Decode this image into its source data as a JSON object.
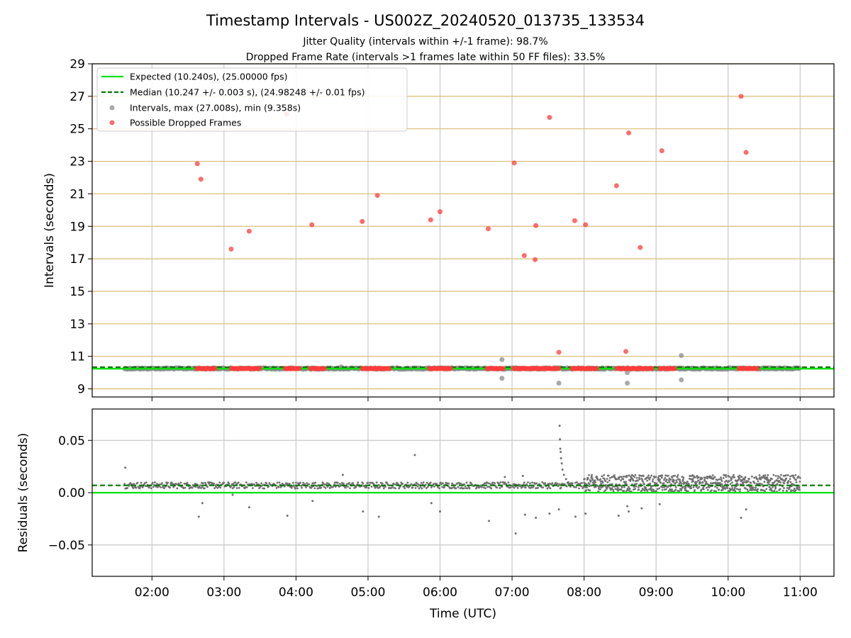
{
  "figure": {
    "title": "Timestamp Intervals - US002Z_20240520_013735_133534",
    "subtitle_1": "Jitter Quality (intervals within +/-1 frame): 98.7%",
    "subtitle_2": "Dropped Frame Rate (intervals >1 frames late within 50 FF files): 33.5%"
  },
  "chart_data": [
    {
      "type": "scatter",
      "panel": "top",
      "ylabel": "Intervals (seconds)",
      "xlim": [
        1.17,
        11.47
      ],
      "ylim": [
        8.5,
        29
      ],
      "yticks": [
        9,
        11,
        13,
        15,
        17,
        19,
        21,
        23,
        25,
        27,
        29
      ],
      "grid": "on",
      "legend_position": "top-left",
      "colors": {
        "expected": "#00e000",
        "median": "#007a00",
        "intervals": "#8c8c8c",
        "dropped": "#ff3c3c",
        "hgrid": "#d8bc73",
        "vgrid": "#c8c8c8"
      },
      "legend": [
        "Expected (10.240s), (25.00000 fps)",
        "Median (10.247 +/- 0.003 s), (24.98248 +/- 0.01 fps)",
        "Intervals, max (27.008s), min (9.358s)",
        "Possible Dropped Frames"
      ],
      "expected_y": 10.24,
      "median_y": 10.247,
      "interval_band": {
        "x_start": 1.62,
        "x_end": 11.0,
        "y": 10.25
      },
      "interval_outliers": [
        {
          "x": 4.63,
          "y": 10.35
        },
        {
          "x": 6.86,
          "y": 10.8
        },
        {
          "x": 6.86,
          "y": 9.65
        },
        {
          "x": 7.65,
          "y": 9.35
        },
        {
          "x": 8.6,
          "y": 9.35
        },
        {
          "x": 8.6,
          "y": 10.0
        },
        {
          "x": 9.35,
          "y": 11.05
        },
        {
          "x": 9.35,
          "y": 9.55
        }
      ],
      "dropped_frames": [
        {
          "x": 2.63,
          "y": 22.85
        },
        {
          "x": 2.68,
          "y": 21.9
        },
        {
          "x": 3.1,
          "y": 17.6
        },
        {
          "x": 3.35,
          "y": 18.7
        },
        {
          "x": 3.87,
          "y": 25.9
        },
        {
          "x": 4.22,
          "y": 19.1
        },
        {
          "x": 4.92,
          "y": 19.3
        },
        {
          "x": 5.13,
          "y": 20.9
        },
        {
          "x": 5.87,
          "y": 19.4
        },
        {
          "x": 6.0,
          "y": 19.9
        },
        {
          "x": 6.67,
          "y": 18.85
        },
        {
          "x": 7.03,
          "y": 22.9
        },
        {
          "x": 7.17,
          "y": 17.2
        },
        {
          "x": 7.32,
          "y": 16.95
        },
        {
          "x": 7.33,
          "y": 19.05
        },
        {
          "x": 7.52,
          "y": 25.7
        },
        {
          "x": 7.65,
          "y": 11.25
        },
        {
          "x": 7.87,
          "y": 19.35
        },
        {
          "x": 8.02,
          "y": 19.1
        },
        {
          "x": 8.45,
          "y": 21.5
        },
        {
          "x": 8.58,
          "y": 11.3
        },
        {
          "x": 8.62,
          "y": 24.75
        },
        {
          "x": 8.78,
          "y": 17.7
        },
        {
          "x": 9.08,
          "y": 23.65
        },
        {
          "x": 10.18,
          "y": 27.0
        },
        {
          "x": 10.25,
          "y": 23.55
        }
      ],
      "dropped_clusters": [
        [
          2.62,
          2.88
        ],
        [
          3.1,
          3.28
        ],
        [
          3.3,
          3.5
        ],
        [
          3.85,
          4.05
        ],
        [
          4.2,
          4.4
        ],
        [
          4.92,
          5.12
        ],
        [
          5.13,
          5.3
        ],
        [
          5.85,
          6.15
        ],
        [
          6.65,
          6.88
        ],
        [
          7.02,
          7.65
        ],
        [
          7.83,
          8.18
        ],
        [
          8.45,
          8.95
        ],
        [
          9.05,
          9.27
        ],
        [
          10.15,
          10.42
        ]
      ]
    },
    {
      "type": "scatter",
      "panel": "bottom",
      "xlabel": "Time (UTC)",
      "ylabel": "Residuals (seconds)",
      "xlim": [
        1.17,
        11.47
      ],
      "ylim": [
        -0.08,
        0.08
      ],
      "yticks": [
        -0.05,
        0.0,
        0.05
      ],
      "ytick_labels": [
        "−0.05",
        "0.00",
        "0.05"
      ],
      "grid": "on",
      "expected_y": 0.0,
      "median_y": 0.007,
      "xticks": [
        2,
        3,
        4,
        5,
        6,
        7,
        8,
        9,
        10,
        11
      ],
      "xtick_labels": [
        "02:00",
        "03:00",
        "04:00",
        "05:00",
        "06:00",
        "07:00",
        "08:00",
        "09:00",
        "10:00",
        "11:00"
      ],
      "residual_outliers": [
        {
          "x": 1.63,
          "y": 0.024
        },
        {
          "x": 2.65,
          "y": -0.023
        },
        {
          "x": 2.7,
          "y": -0.01
        },
        {
          "x": 3.12,
          "y": -0.002
        },
        {
          "x": 3.35,
          "y": -0.014
        },
        {
          "x": 3.88,
          "y": -0.022
        },
        {
          "x": 4.23,
          "y": -0.008
        },
        {
          "x": 4.93,
          "y": -0.018
        },
        {
          "x": 5.15,
          "y": -0.023
        },
        {
          "x": 5.65,
          "y": 0.036
        },
        {
          "x": 5.88,
          "y": -0.01
        },
        {
          "x": 6.0,
          "y": -0.018
        },
        {
          "x": 6.68,
          "y": -0.027
        },
        {
          "x": 7.05,
          "y": -0.039
        },
        {
          "x": 7.18,
          "y": -0.021
        },
        {
          "x": 7.33,
          "y": -0.024
        },
        {
          "x": 7.52,
          "y": -0.02
        },
        {
          "x": 7.65,
          "y": -0.016
        },
        {
          "x": 7.88,
          "y": -0.023
        },
        {
          "x": 8.02,
          "y": -0.02
        },
        {
          "x": 8.48,
          "y": -0.022
        },
        {
          "x": 8.6,
          "y": -0.013
        },
        {
          "x": 8.62,
          "y": -0.018
        },
        {
          "x": 8.8,
          "y": -0.015
        },
        {
          "x": 9.05,
          "y": -0.011
        },
        {
          "x": 10.18,
          "y": -0.024
        },
        {
          "x": 10.25,
          "y": -0.016
        },
        {
          "x": 6.9,
          "y": 0.015
        },
        {
          "x": 7.15,
          "y": 0.016
        },
        {
          "x": 4.65,
          "y": 0.017
        }
      ],
      "residual_spike": [
        {
          "x": 7.66,
          "y": 0.064
        },
        {
          "x": 7.665,
          "y": 0.051
        },
        {
          "x": 7.67,
          "y": 0.042
        },
        {
          "x": 7.675,
          "y": 0.039
        },
        {
          "x": 7.68,
          "y": 0.033
        },
        {
          "x": 7.69,
          "y": 0.028
        },
        {
          "x": 7.7,
          "y": 0.022
        },
        {
          "x": 7.72,
          "y": 0.017
        },
        {
          "x": 7.75,
          "y": 0.013
        },
        {
          "x": 7.78,
          "y": 0.01
        },
        {
          "x": 7.82,
          "y": 0.009
        }
      ],
      "residual_band_early": {
        "x_start": 1.62,
        "x_end": 8.0,
        "y_min": 0.004,
        "y_max": 0.01
      },
      "residual_band_late": {
        "x_start": 8.0,
        "x_end": 11.0,
        "y_min": 0.001,
        "y_max": 0.017
      }
    }
  ]
}
